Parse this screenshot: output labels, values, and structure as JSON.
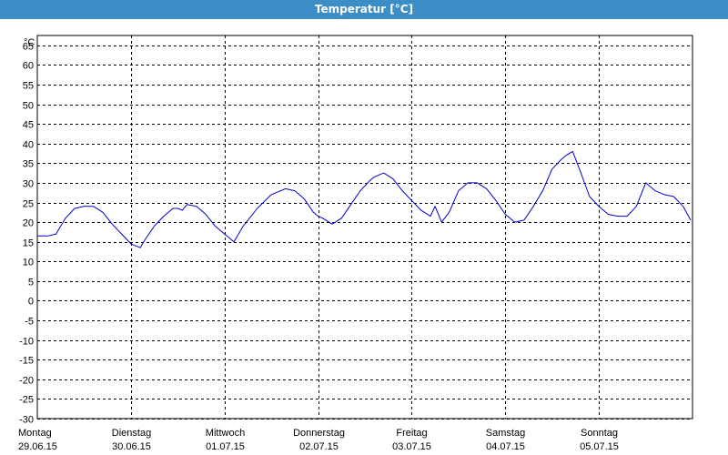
{
  "window": {
    "title": "Temperatur [°C]"
  },
  "chart_data": {
    "type": "line",
    "title": "Temperatur [°C]",
    "ylabel": "°C",
    "xlabel": "",
    "ylim": [
      -30,
      68
    ],
    "yticks": [
      65,
      60,
      55,
      50,
      45,
      40,
      35,
      30,
      25,
      20,
      15,
      10,
      5,
      0,
      -5,
      -10,
      -15,
      -20,
      -25,
      -30
    ],
    "xlim": [
      0,
      7
    ],
    "days": [
      {
        "weekday": "Montag",
        "date": "29.06.15"
      },
      {
        "weekday": "Dienstag",
        "date": "30.06.15"
      },
      {
        "weekday": "Mittwoch",
        "date": "01.07.15"
      },
      {
        "weekday": "Donnerstag",
        "date": "02.07.15"
      },
      {
        "weekday": "Freitag",
        "date": "03.07.15"
      },
      {
        "weekday": "Samstag",
        "date": "04.07.15"
      },
      {
        "weekday": "Sonntag",
        "date": "05.07.15"
      }
    ],
    "grid": true,
    "line_color": "#0000cc",
    "series": [
      {
        "x": [
          0,
          0.12,
          0.2,
          0.3,
          0.4,
          0.5,
          0.6,
          0.7,
          0.8,
          0.9,
          1.0,
          1.1,
          1.15,
          1.25,
          1.35,
          1.45,
          1.5,
          1.55,
          1.6,
          1.7,
          1.8,
          1.9,
          2.0,
          2.05,
          2.1,
          2.2,
          2.35,
          2.5,
          2.65,
          2.75,
          2.85,
          2.95,
          3.0,
          3.05,
          3.15,
          3.25,
          3.35,
          3.45,
          3.55,
          3.6,
          3.7,
          3.8,
          3.9,
          4.0,
          4.1,
          4.2,
          4.25,
          4.32,
          4.4,
          4.5,
          4.6,
          4.7,
          4.8,
          4.9,
          5.0,
          5.1,
          5.2,
          5.3,
          5.4,
          5.5,
          5.6,
          5.65,
          5.72,
          5.8,
          5.9,
          6.0,
          6.1,
          6.2,
          6.3,
          6.4,
          6.5,
          6.6,
          6.7,
          6.8,
          6.9,
          6.98
        ],
        "y": [
          16.5,
          16.5,
          17,
          21,
          23.5,
          24,
          24,
          22.5,
          19.5,
          17,
          14.5,
          13.5,
          15.5,
          19,
          21.5,
          23.5,
          23.5,
          23,
          24.5,
          24,
          22,
          19,
          17,
          16,
          15,
          19,
          23.5,
          27,
          28.5,
          28,
          26,
          22.5,
          21.5,
          21,
          19.5,
          21,
          24.5,
          28,
          30.5,
          31.5,
          32.5,
          31,
          28,
          25.5,
          23,
          21.5,
          24,
          20,
          22.5,
          28,
          30,
          30,
          28.5,
          25.5,
          22,
          20,
          20.5,
          24,
          28,
          33.5,
          36,
          37,
          38,
          33,
          26.5,
          24,
          22,
          21.5,
          21.5,
          24,
          30,
          28,
          27,
          26.5,
          24,
          20.5
        ]
      }
    ]
  }
}
